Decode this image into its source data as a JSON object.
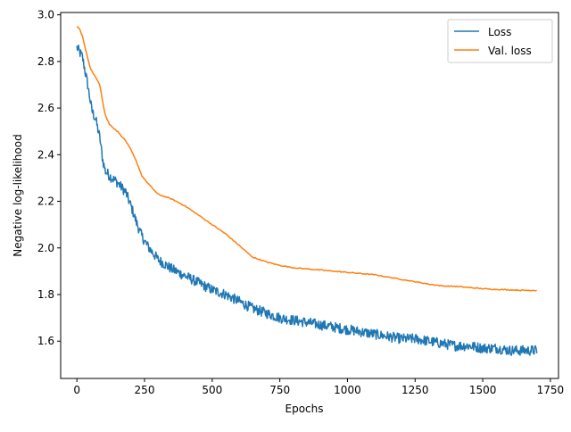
{
  "chart_data": {
    "type": "line",
    "xlabel": "Epochs",
    "ylabel": "Negative log-likelihood",
    "xlim": [
      -60,
      1780
    ],
    "ylim": [
      1.44,
      3.01
    ],
    "xticks": [
      0,
      250,
      500,
      750,
      1000,
      1250,
      1500,
      1750
    ],
    "yticks": [
      1.6,
      1.8,
      2.0,
      2.2,
      2.4,
      2.6,
      2.8,
      3.0
    ],
    "xtick_labels": [
      "0",
      "250",
      "500",
      "750",
      "1000",
      "1250",
      "1500",
      "1750"
    ],
    "ytick_labels": [
      "1.6",
      "1.8",
      "2.0",
      "2.2",
      "2.4",
      "2.6",
      "2.8",
      "3.0"
    ],
    "grid": false,
    "legend_position": "top-right",
    "series": [
      {
        "name": "Loss",
        "color": "#1f77b4",
        "noise": 0.022,
        "x": [
          0,
          20,
          40,
          55,
          70,
          85,
          95,
          105,
          120,
          150,
          180,
          200,
          220,
          240,
          260,
          300,
          350,
          400,
          450,
          500,
          550,
          600,
          650,
          700,
          750,
          800,
          850,
          900,
          950,
          1000,
          1050,
          1100,
          1150,
          1200,
          1250,
          1300,
          1350,
          1400,
          1450,
          1500,
          1550,
          1600,
          1650,
          1700
        ],
        "y": [
          2.86,
          2.82,
          2.7,
          2.59,
          2.55,
          2.47,
          2.38,
          2.33,
          2.31,
          2.28,
          2.24,
          2.18,
          2.11,
          2.05,
          2.01,
          1.95,
          1.91,
          1.88,
          1.85,
          1.82,
          1.8,
          1.77,
          1.74,
          1.72,
          1.7,
          1.69,
          1.68,
          1.67,
          1.66,
          1.65,
          1.64,
          1.63,
          1.62,
          1.61,
          1.61,
          1.6,
          1.59,
          1.58,
          1.58,
          1.57,
          1.57,
          1.56,
          1.56,
          1.56
        ]
      },
      {
        "name": "Val. loss",
        "color": "#ff7f0e",
        "noise": 0.002,
        "x": [
          0,
          10,
          20,
          30,
          50,
          70,
          85,
          95,
          105,
          120,
          150,
          180,
          200,
          220,
          240,
          260,
          300,
          350,
          400,
          450,
          500,
          550,
          600,
          650,
          700,
          750,
          800,
          850,
          900,
          950,
          1000,
          1050,
          1100,
          1150,
          1200,
          1250,
          1300,
          1350,
          1400,
          1450,
          1500,
          1550,
          1600,
          1650,
          1700
        ],
        "y": [
          2.95,
          2.94,
          2.91,
          2.86,
          2.77,
          2.73,
          2.7,
          2.63,
          2.57,
          2.53,
          2.5,
          2.46,
          2.42,
          2.37,
          2.31,
          2.28,
          2.23,
          2.21,
          2.18,
          2.14,
          2.1,
          2.06,
          2.01,
          1.96,
          1.94,
          1.925,
          1.915,
          1.91,
          1.905,
          1.9,
          1.895,
          1.89,
          1.885,
          1.875,
          1.865,
          1.855,
          1.845,
          1.837,
          1.835,
          1.83,
          1.825,
          1.822,
          1.82,
          1.818,
          1.818
        ]
      }
    ]
  }
}
